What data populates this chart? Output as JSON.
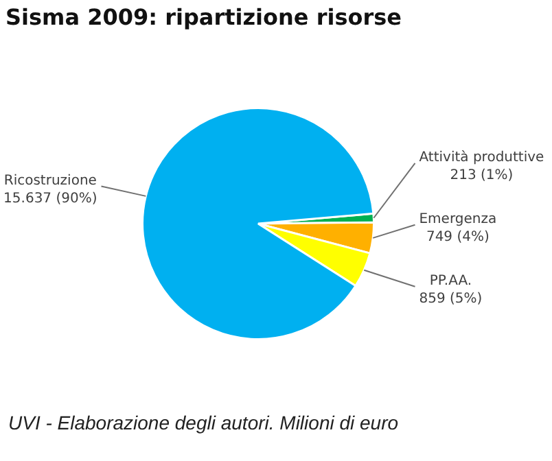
{
  "chart_data": {
    "type": "pie",
    "title": "Sisma 2009: ripartizione risorse",
    "categories": [
      "Attività produttive",
      "Emergenza",
      "PP.AA.",
      "Ricostruzione"
    ],
    "values": [
      213,
      749,
      859,
      15637
    ],
    "colors": [
      "#00b050",
      "#ffb000",
      "#ffff00",
      "#00b0f0"
    ],
    "value_labels": [
      "213 (1%)",
      "749 (4%)",
      "859 (5%)",
      "15.637 (90%)"
    ],
    "legend": false,
    "annotations": [
      "UVI - Elaborazione degli autori. Milioni di euro"
    ]
  }
}
